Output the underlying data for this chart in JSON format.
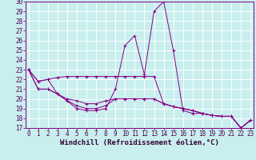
{
  "xlabel": "Windchill (Refroidissement éolien,°C)",
  "bg_color": "#c8eeee",
  "grid_color": "#ffffff",
  "line_color": "#880088",
  "hours": [
    0,
    1,
    2,
    3,
    4,
    5,
    6,
    7,
    8,
    9,
    10,
    11,
    12,
    13,
    14,
    15,
    16,
    17,
    18,
    19,
    20,
    21,
    22,
    23
  ],
  "series": [
    [
      23,
      21,
      21,
      20.5,
      19.8,
      19.0,
      18.8,
      18.8,
      19.0,
      21.0,
      25.5,
      26.5,
      22.5,
      29.0,
      30.0,
      25.0,
      18.8,
      18.5,
      18.5,
      18.3,
      18.2,
      18.2,
      17.0,
      17.8
    ],
    [
      23,
      21.0,
      21.0,
      20.5,
      19.8,
      19.3,
      19.0,
      19.0,
      19.3,
      20.0,
      20.0,
      20.0,
      20.0,
      20.0,
      19.5,
      19.2,
      19.0,
      18.8,
      18.5,
      18.3,
      18.2,
      18.2,
      17.0,
      17.8
    ],
    [
      23,
      21.8,
      22.0,
      20.5,
      20.0,
      19.8,
      19.5,
      19.5,
      19.8,
      20.0,
      20.0,
      20.0,
      20.0,
      20.0,
      19.5,
      19.2,
      19.0,
      18.8,
      18.5,
      18.3,
      18.2,
      18.2,
      17.0,
      17.8
    ],
    [
      23,
      21.8,
      22.0,
      22.2,
      22.3,
      22.3,
      22.3,
      22.3,
      22.3,
      22.3,
      22.3,
      22.3,
      22.3,
      22.3,
      19.5,
      19.2,
      19.0,
      18.8,
      18.5,
      18.3,
      18.2,
      18.2,
      17.0,
      17.8
    ]
  ],
  "ylim": [
    17,
    30
  ],
  "yticks": [
    17,
    18,
    19,
    20,
    21,
    22,
    23,
    24,
    25,
    26,
    27,
    28,
    29,
    30
  ],
  "xtick_labels": [
    "0",
    "1",
    "2",
    "3",
    "4",
    "5",
    "6",
    "7",
    "8",
    "9",
    "1011",
    "12",
    "13",
    "14",
    "15",
    "16",
    "17",
    "18",
    "19",
    "20",
    "21",
    "2223"
  ],
  "tick_fontsize": 5.5,
  "xlabel_fontsize": 6.5
}
